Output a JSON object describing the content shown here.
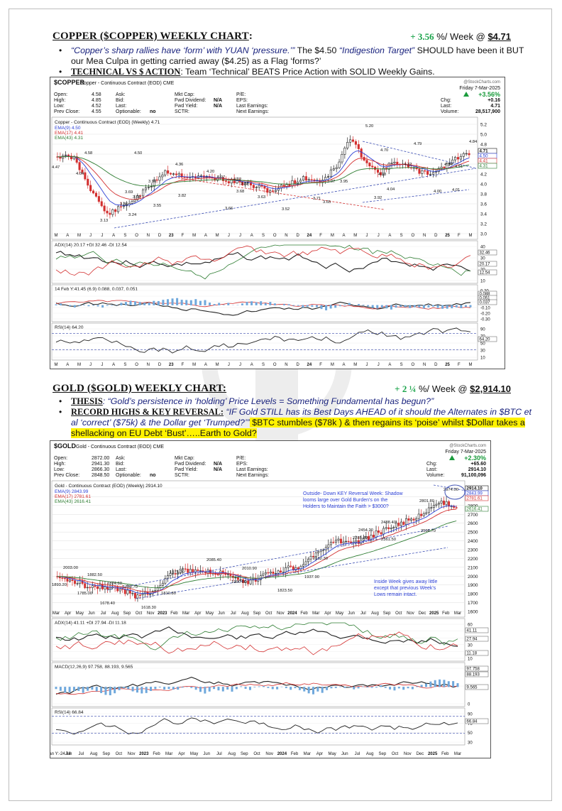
{
  "copper": {
    "title": "COPPER ($COPPER) WEEKLY CHART",
    "title_colon": ":",
    "change": "+ 3.56",
    "change_suffix": " %/ Week @ ",
    "price": "$4.71",
    "bullet1_quote": "“Copper’s sharp rallies have ‘form’ with YUAN ‘pressure.’”",
    "bullet1_mid": "   The $4.50 ",
    "bullet1_target": "“Indigestion Target”",
    "bullet1_rest": " SHOULD have been it BUT our Mea Culpa in getting carried away ($4.25) as a Flag ‘forms?’",
    "bullet2_key": "TECHNICAL VS $ ACTION",
    "bullet2_rest": ": Team ‘Technical’ BEATS Price Action with SOLID Weekly Gains.",
    "chart": {
      "symbol": "$COPPER",
      "desc": "Copper - Continuous Contract (EOD) CME",
      "stockcharts": "@StockCharts.com",
      "date": "Friday  7-Mar-2025",
      "pct": "+3.56%",
      "info_col1": [
        "Open:",
        "4.58",
        "High:",
        "4.85",
        "Low:",
        "4.52",
        "Prev Close:",
        "4.55"
      ],
      "info_col2": [
        "Ask:",
        "Bid:",
        "Last:",
        "Optionable:",
        "no"
      ],
      "info_col3": [
        "Mkt Cap:",
        "Fwd Dividend:",
        "N/A",
        "Fwd Yield:",
        "N/A",
        "SCTR:"
      ],
      "info_col4": [
        "P/E:",
        "EPS:",
        "Last Earnings:",
        "Next Earnings:"
      ],
      "info_right": [
        "Chg:",
        "+0.16",
        "Last:",
        "4.71",
        "Volume:",
        "28,517,900"
      ],
      "legend": "Copper - Continuous Contract (EOD) (Weekly) 4.71",
      "ema9": "EMA(9) 4.50",
      "ema17": "EMA(17) 4.41",
      "ema43": "EMA(43) 4.31",
      "adx_label": "ADX(14) 20.17 +DI 32.46 -DI 12.54",
      "macd_label": "14 Feb Y:41.45 (6.9) 0.088, 0.037, 0.051",
      "rsi_label": "RSI(14) 64.20",
      "months": [
        "M",
        "A",
        "M",
        "J",
        "J",
        "A",
        "S",
        "O",
        "N",
        "D",
        "23",
        "F",
        "M",
        "A",
        "M",
        "J",
        "J",
        "A",
        "S",
        "O",
        "N",
        "D",
        "24",
        "F",
        "M",
        "A",
        "M",
        "J",
        "J",
        "A",
        "S",
        "O",
        "N",
        "D",
        "25",
        "F",
        "M"
      ],
      "price_axis": [
        "5.2",
        "5.0",
        "4.8",
        "4.6",
        "4.4",
        "4.2",
        "4.0",
        "3.8",
        "3.6",
        "3.4",
        "3.2",
        "3.0"
      ],
      "right_tags": [
        "4.71",
        "4.50",
        "4.41",
        "4.31"
      ],
      "adx_axis": [
        "40",
        "30",
        "20",
        "10"
      ],
      "adx_tags": [
        "32.46",
        "20.17",
        "12.54"
      ],
      "macd_axis": [
        "0.20",
        "0.10",
        "0.00",
        "-0.10",
        "-0.20",
        "-0.30"
      ],
      "macd_tags": [
        "0.088",
        "0.051",
        "0.037"
      ],
      "rsi_axis": [
        "90",
        "70",
        "50",
        "30",
        "10"
      ],
      "rsi_tag": "64.20",
      "price_labels": [
        "5.20",
        "4.79",
        "4.84",
        "4.70",
        "4.58",
        "4.51",
        "4.47",
        "4.50",
        "4.36",
        "4.20",
        "4.33",
        "4.32",
        "4.34",
        "4.04",
        "3.96",
        "3.97",
        "4.02",
        "3.91",
        "3.97",
        "3.95",
        "4.04",
        "4.00",
        "4.01",
        "3.69",
        "3.59",
        "3.82",
        "3.68",
        "3.63",
        "3.71",
        "3.65",
        "3.92",
        "3.36",
        "3.55",
        "3.66",
        "3.52",
        "3.24",
        "3.13"
      ]
    }
  },
  "gold": {
    "title": "GOLD ($GOLD) WEEKLY CHART:",
    "change": "+ 2 ¼",
    "change_suffix": " %/ Week @ ",
    "price": "$2,914.10",
    "thesis_key": "THESIS",
    "thesis_rest": ": “Gold’s persistence in ‘holding’ Price Levels = Something Fundamental has begun?”",
    "b2_key": "RECORD HIGHS & KEY REVERSAL:",
    "b2_italic": " “IF Gold STILL has its Best Days AHEAD of it should the Alternates in $BTC et al ‘correct’ ($75k) & the Dollar get ‘Trumped?’”",
    "b2_hl": " $BTC stumbles ($78k ) & then regains its ‘poise’ whilst $Dollar takes a shellacking on EU Debt ‘Bust’…..Earth to Gold?",
    "chart": {
      "symbol": "$GOLD",
      "desc": "Gold - Continuous Contract (EOD) CME",
      "stockcharts": "@StockCharts.com",
      "date": "Friday  7-Mar-2025",
      "pct": "+2.30%",
      "info_col1": [
        "Open:",
        "2872.00",
        "High:",
        "2941.30",
        "Low:",
        "2866.30",
        "Prev Close:",
        "2848.50"
      ],
      "info_col2": [
        "Ask:",
        "Bid:",
        "Last:",
        "Optionable:",
        "no"
      ],
      "info_col3": [
        "Mkt Cap:",
        "Fwd Dividend:",
        "N/A",
        "Fwd Yield:",
        "N/A",
        "SCTR:"
      ],
      "info_col4": [
        "P/E:",
        "EPS:",
        "Last Earnings:",
        "Next Earnings:"
      ],
      "info_right": [
        "Chg:",
        "+65.60",
        "Last:",
        "2914.10",
        "Volume:",
        "91,100,096"
      ],
      "legend": "Gold - Continuous Contract (EOD) (Weekly) 2914.10",
      "ema9": "EMA(9) 2843.99",
      "ema17": "EMA(17) 2781.61",
      "ema43": "EMA(43) 2616.41",
      "note1": "Outside- Down KEY Reversal Week: Shadow looms large over Gold Burden's on the Holders to Maintain the Faith > $3000?",
      "note2": "Inside Week gives away little except that previous Week's Lows remain intact.",
      "adx_label": "ADX(14) 41.11 +DI 27.94 -DI 11.18",
      "macd_label": "MACD(12,26,9) 97.758, 88.193, 9.565",
      "rsi_label": "RSI(14) 66.84",
      "months": [
        "Mar",
        "Apr",
        "May",
        "Jun",
        "Jul",
        "Aug",
        "Sep",
        "Oct",
        "Nov",
        "2023",
        "Feb",
        "Mar",
        "Apr",
        "May",
        "Jun",
        "Jul",
        "Aug",
        "Sep",
        "Oct",
        "Nov",
        "2024",
        "Feb",
        "Mar",
        "Apr",
        "May",
        "Jun",
        "Jul",
        "Aug",
        "Sep",
        "Oct",
        "Nov",
        "Dec",
        "2025",
        "Feb",
        "Mar"
      ],
      "bottom_months": [
        "21 Jan Y:-24.66",
        "Jun",
        "Jul",
        "Aug",
        "Sep",
        "Oct",
        "Nov",
        "2023",
        "Feb",
        "Mar",
        "Apr",
        "May",
        "Jun",
        "Jul",
        "Aug",
        "Sep",
        "Oct",
        "Nov",
        "2024",
        "Feb",
        "Mar",
        "Apr",
        "May",
        "Jun",
        "Jul",
        "Aug",
        "Sep",
        "Oct",
        "Nov",
        "Dec",
        "2025",
        "Feb",
        "Mar"
      ],
      "price_axis": [
        "3000",
        "2900",
        "2800",
        "2700",
        "2600",
        "2500",
        "2400",
        "2300",
        "2200",
        "2100",
        "2000",
        "1900",
        "1800",
        "1700",
        "1600"
      ],
      "right_tags": [
        "2914.10",
        "2843.99",
        "2781.61",
        "2616.41"
      ],
      "adx_axis": [
        "60",
        "50",
        "40",
        "30",
        "20",
        "10"
      ],
      "adx_tags": [
        "41.11",
        "27.94",
        "11.18"
      ],
      "macd_axis": [
        "100",
        "50",
        "0"
      ],
      "macd_tags": [
        "97.758",
        "88.193",
        "9.565"
      ],
      "rsi_axis": [
        "90",
        "70",
        "50",
        "30"
      ],
      "rsi_tag": "66.84",
      "price_labels": [
        "2974.00",
        "2801.80",
        "2596.70",
        "2488.40",
        "2454.20",
        "2361.50",
        "2285.20",
        "2152.30",
        "2085.40",
        "2010.90",
        "1975.20",
        "1937.90",
        "1900.60",
        "1823.50",
        "1810.80",
        "2003.00",
        "1893.20",
        "1882.50",
        "1824.60",
        "1785.00",
        "1738.70",
        "1678.40",
        "1618.30"
      ]
    }
  }
}
